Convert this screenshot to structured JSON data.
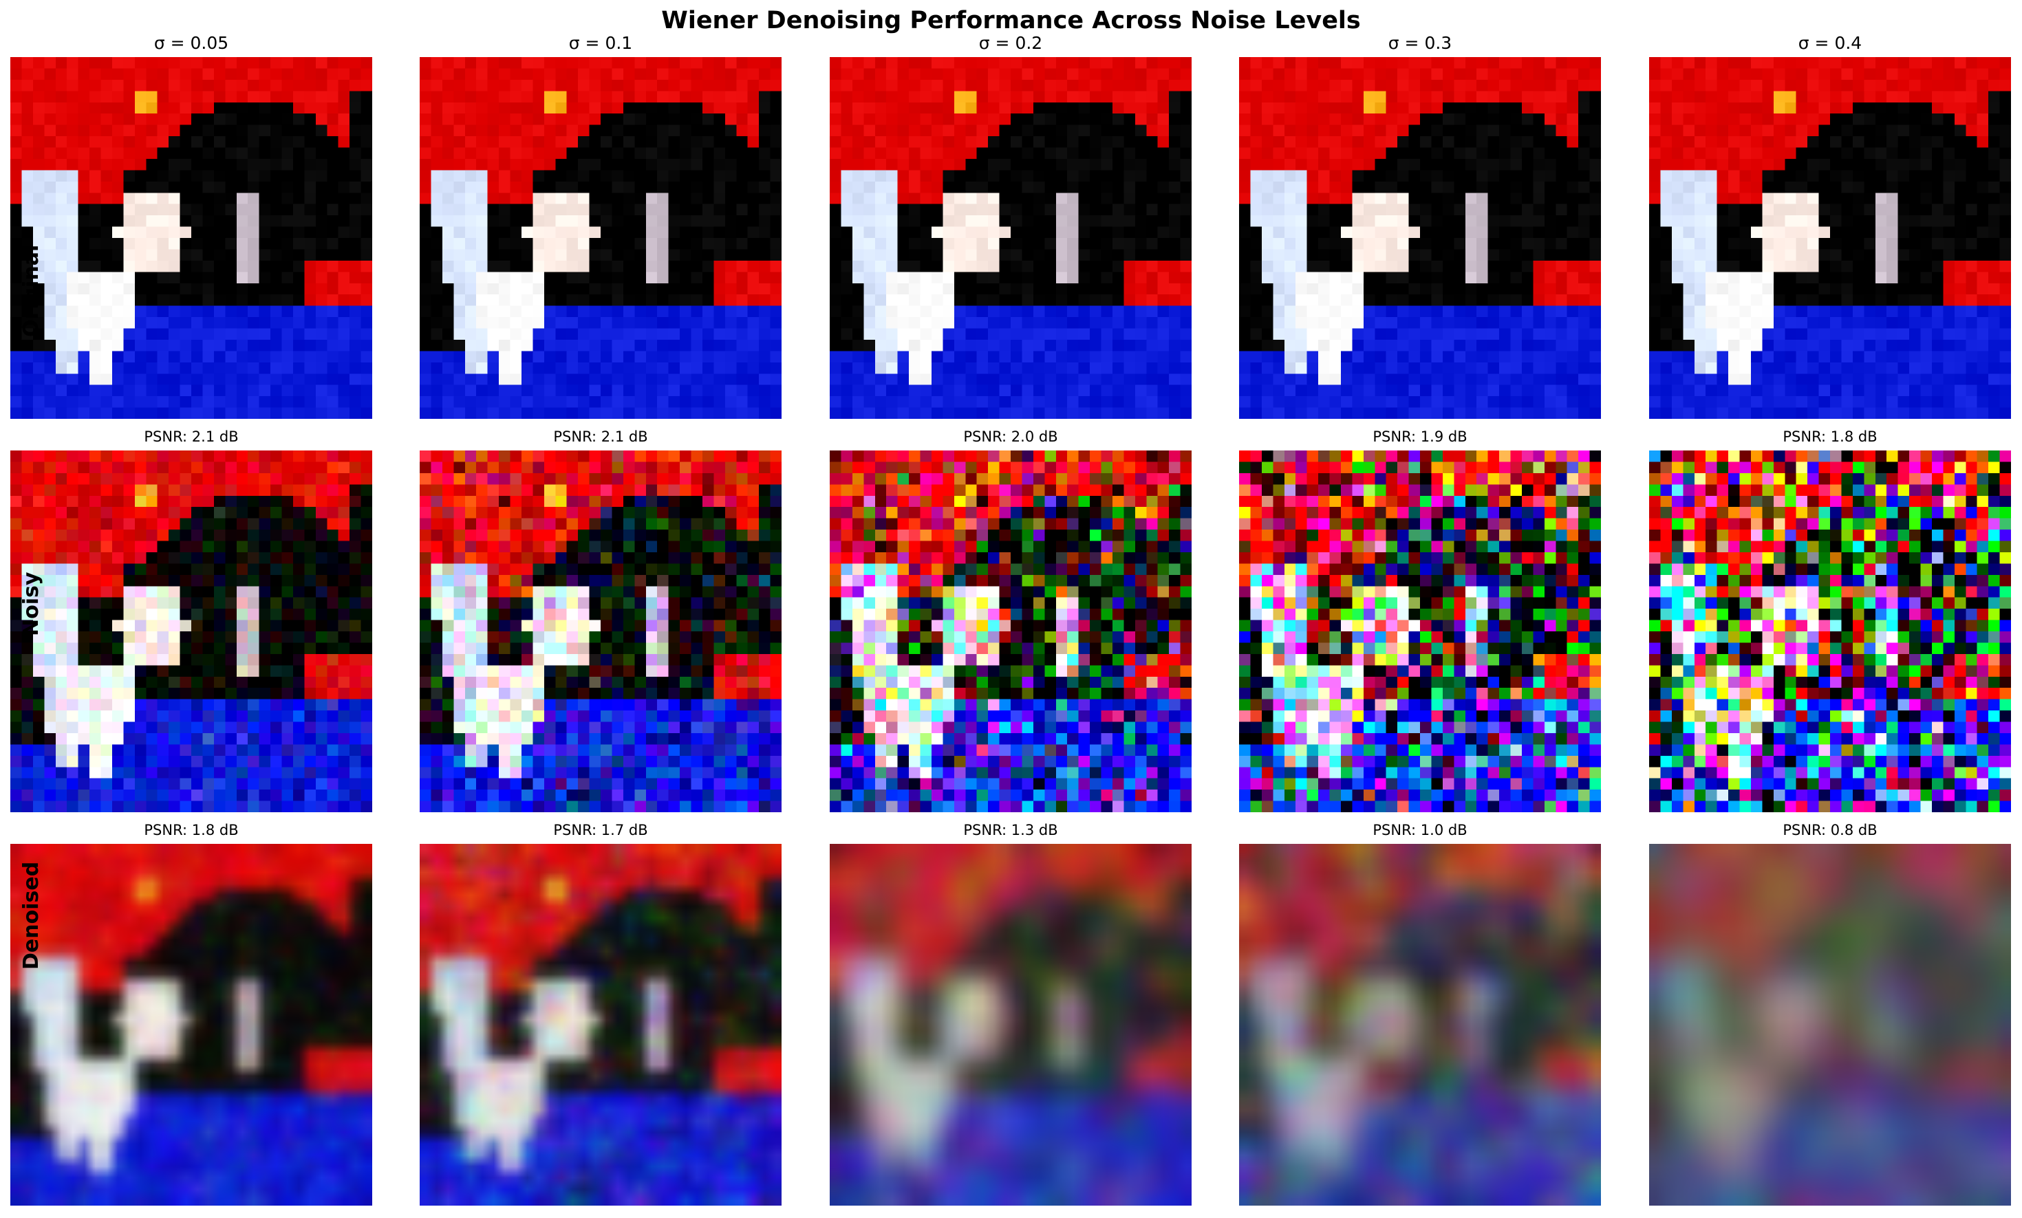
{
  "title": "Wiener Denoising Performance Across Noise Levels",
  "row_labels": [
    "Original",
    "Noisy",
    "Denoised"
  ],
  "columns": [
    {
      "sigma": 0.05,
      "title": "σ = 0.05",
      "noisy_psnr": "PSNR: 2.1 dB",
      "denoised_psnr": "PSNR: 1.8 dB"
    },
    {
      "sigma": 0.1,
      "title": "σ = 0.1",
      "noisy_psnr": "PSNR: 2.1 dB",
      "denoised_psnr": "PSNR: 1.7 dB"
    },
    {
      "sigma": 0.2,
      "title": "σ = 0.2",
      "noisy_psnr": "PSNR: 2.0 dB",
      "denoised_psnr": "PSNR: 1.3 dB"
    },
    {
      "sigma": 0.3,
      "title": "σ = 0.3",
      "noisy_psnr": "PSNR: 1.9 dB",
      "denoised_psnr": "PSNR: 1.0 dB"
    },
    {
      "sigma": 0.4,
      "title": "σ = 0.4",
      "noisy_psnr": "PSNR: 1.8 dB",
      "denoised_psnr": "PSNR: 0.8 dB"
    }
  ],
  "colors": {
    "red": "#e00000",
    "blue": "#0a1ad8",
    "white": "#ffffff",
    "black": "#000000"
  }
}
